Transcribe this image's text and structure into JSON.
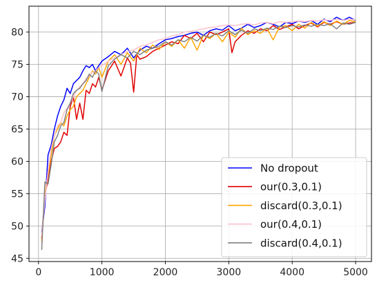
{
  "chart_data": {
    "type": "line",
    "title": "",
    "xlabel": "",
    "ylabel": "",
    "xlim": [
      -150,
      5250
    ],
    "ylim": [
      44.5,
      84
    ],
    "xticks": [
      0,
      1000,
      2000,
      3000,
      4000,
      5000
    ],
    "yticks": [
      45,
      50,
      55,
      60,
      65,
      70,
      75,
      80
    ],
    "grid": true,
    "legend_position": "lower-right",
    "series": [
      {
        "name": "No dropout",
        "color": "#0000ff",
        "x": [
          50,
          100,
          150,
          200,
          250,
          300,
          350,
          400,
          450,
          500,
          550,
          600,
          650,
          700,
          750,
          800,
          850,
          900,
          950,
          1000,
          1100,
          1200,
          1300,
          1400,
          1500,
          1600,
          1700,
          1800,
          1900,
          2000,
          2100,
          2200,
          2300,
          2400,
          2500,
          2600,
          2700,
          2800,
          2900,
          3000,
          3100,
          3200,
          3300,
          3400,
          3500,
          3600,
          3700,
          3800,
          3900,
          4000,
          4100,
          4200,
          4300,
          4400,
          4500,
          4600,
          4700,
          4800,
          4900,
          5000
        ],
        "y": [
          49,
          53,
          61,
          62.5,
          65,
          67,
          68.5,
          69.5,
          71.3,
          70.5,
          72,
          72.5,
          73,
          74,
          74.8,
          74.5,
          75,
          74,
          74.8,
          75.5,
          76.2,
          77,
          76.5,
          77.5,
          76,
          77.2,
          77.8,
          77.5,
          78.2,
          78.8,
          79,
          79.3,
          79.5,
          79.8,
          80,
          79.5,
          80.2,
          80.5,
          80.3,
          81,
          80.2,
          80.6,
          81.2,
          80.7,
          81,
          81.5,
          81.2,
          80.8,
          81.5,
          81.3,
          81.7,
          81.5,
          81.8,
          81.2,
          82,
          81.6,
          82.3,
          81.8,
          82.3,
          81.8
        ]
      },
      {
        "name": "our(0.3,0.1)",
        "color": "#e00000",
        "x": [
          50,
          100,
          150,
          200,
          250,
          300,
          350,
          400,
          450,
          500,
          550,
          600,
          650,
          700,
          750,
          800,
          850,
          900,
          950,
          1000,
          1100,
          1200,
          1300,
          1400,
          1450,
          1500,
          1550,
          1600,
          1700,
          1800,
          1900,
          2000,
          2100,
          2200,
          2300,
          2400,
          2500,
          2600,
          2700,
          2800,
          2900,
          3000,
          3050,
          3100,
          3200,
          3300,
          3400,
          3500,
          3600,
          3700,
          3800,
          3900,
          4000,
          4100,
          4200,
          4300,
          4400,
          4500,
          4600,
          4700,
          4800,
          4900,
          5000
        ],
        "y": [
          48,
          55,
          57,
          60,
          62,
          62.3,
          63,
          64.5,
          64,
          68.5,
          70,
          66.5,
          69,
          66.5,
          71,
          70.5,
          72,
          71.5,
          73,
          71,
          74,
          75.5,
          73.2,
          76,
          75.2,
          70.7,
          76.5,
          75.8,
          76.2,
          77,
          77.5,
          78,
          78.5,
          78.2,
          79.5,
          79,
          79.8,
          78.5,
          80,
          79.6,
          80,
          80.5,
          76.8,
          78.5,
          79.5,
          80.2,
          79.8,
          80.5,
          80.2,
          81,
          80.4,
          80.8,
          81.2,
          80.5,
          81,
          81.4,
          80.8,
          81.5,
          81.2,
          81.6,
          81.2,
          81.4,
          81.5
        ]
      },
      {
        "name": "discard(0.3,0.1)",
        "color": "#ffa500",
        "x": [
          50,
          100,
          150,
          200,
          250,
          300,
          350,
          400,
          450,
          500,
          550,
          600,
          650,
          700,
          750,
          800,
          850,
          900,
          950,
          1000,
          1100,
          1200,
          1300,
          1400,
          1500,
          1600,
          1700,
          1800,
          1900,
          2000,
          2100,
          2200,
          2300,
          2400,
          2500,
          2600,
          2700,
          2800,
          2900,
          3000,
          3100,
          3200,
          3300,
          3400,
          3500,
          3600,
          3700,
          3800,
          3900,
          4000,
          4100,
          4200,
          4300,
          4400,
          4500,
          4600,
          4700,
          4800,
          4900,
          5000
        ],
        "y": [
          47.5,
          55,
          58,
          61,
          64,
          65,
          66,
          65.5,
          67,
          68,
          68.5,
          70,
          70.5,
          71,
          72,
          73,
          74,
          73.5,
          74.5,
          73,
          75.5,
          76.5,
          75,
          76.8,
          75.5,
          77.5,
          76.8,
          78,
          77.3,
          78.5,
          77.8,
          78.8,
          77.5,
          79.2,
          77.2,
          79.5,
          79,
          79.8,
          78.5,
          80,
          79.2,
          80.6,
          79.6,
          80.2,
          79.8,
          80.6,
          78.8,
          80.8,
          81,
          80.2,
          81.2,
          80.6,
          81.5,
          80.9,
          81.6,
          81,
          81.7,
          81.2,
          81.8,
          81.6
        ]
      },
      {
        "name": "our(0.4,0.1)",
        "color": "#ffc0cb",
        "x": [
          50,
          100,
          150,
          200,
          250,
          300,
          350,
          400,
          450,
          500,
          550,
          600,
          650,
          700,
          750,
          800,
          850,
          900,
          950,
          1000,
          1100,
          1200,
          1300,
          1400,
          1500,
          1600,
          1700,
          1800,
          1900,
          2000,
          2100,
          2200,
          2300,
          2400,
          2500,
          2600,
          2700,
          2800,
          2900,
          3000,
          3100,
          3200,
          3300,
          3400,
          3500,
          3600,
          3700,
          3800,
          3900,
          4000,
          4100,
          4200,
          4300,
          4400,
          4500,
          4600,
          4700,
          4800,
          4900,
          5000
        ],
        "y": [
          48.5,
          54,
          58.5,
          62,
          64,
          65.5,
          66,
          67.5,
          68.2,
          69,
          70,
          71,
          71.5,
          72,
          72.8,
          73.2,
          73.8,
          74,
          74.5,
          74.8,
          75.5,
          76,
          76.5,
          77,
          77.2,
          77.8,
          78,
          78.4,
          78.8,
          79,
          79.4,
          79.6,
          80,
          80.1,
          80.3,
          80.5,
          80.7,
          80.8,
          81,
          81.1,
          81,
          81.2,
          81.3,
          81.1,
          81.4,
          81.5,
          81.3,
          81.6,
          81.5,
          81.6,
          81.7,
          81.6,
          81.8,
          81.7,
          81.9,
          81.8,
          82,
          81.8,
          82,
          81.9
        ]
      },
      {
        "name": "discard(0.4,0.1)",
        "color": "#808080",
        "x": [
          50,
          100,
          150,
          200,
          250,
          300,
          350,
          400,
          450,
          500,
          550,
          600,
          650,
          700,
          750,
          800,
          850,
          900,
          950,
          1000,
          1100,
          1200,
          1300,
          1400,
          1500,
          1600,
          1700,
          1800,
          1900,
          2000,
          2100,
          2200,
          2300,
          2400,
          2500,
          2600,
          2700,
          2800,
          2900,
          3000,
          3100,
          3200,
          3300,
          3400,
          3500,
          3600,
          3700,
          3800,
          3900,
          4000,
          4100,
          4200,
          4300,
          4400,
          4500,
          4600,
          4700,
          4800,
          4900,
          5000
        ],
        "y": [
          46.3,
          56.8,
          56.5,
          59.5,
          63,
          64,
          65.5,
          66,
          68,
          69,
          70.5,
          71,
          71.3,
          72,
          72.5,
          73.5,
          73,
          74,
          73.5,
          70.8,
          74.8,
          75.8,
          76.5,
          76,
          77,
          76.5,
          77.2,
          77.5,
          77.8,
          78.5,
          78,
          78.8,
          78.5,
          79.2,
          78.6,
          79.5,
          79.2,
          79.8,
          79.4,
          80.2,
          79.6,
          80.3,
          79.8,
          80.5,
          80.2,
          80.6,
          80.4,
          80.9,
          80.7,
          81,
          80.8,
          81.1,
          80.9,
          81.2,
          81,
          81.3,
          80.5,
          81.4,
          81.2,
          81.5
        ]
      }
    ]
  }
}
